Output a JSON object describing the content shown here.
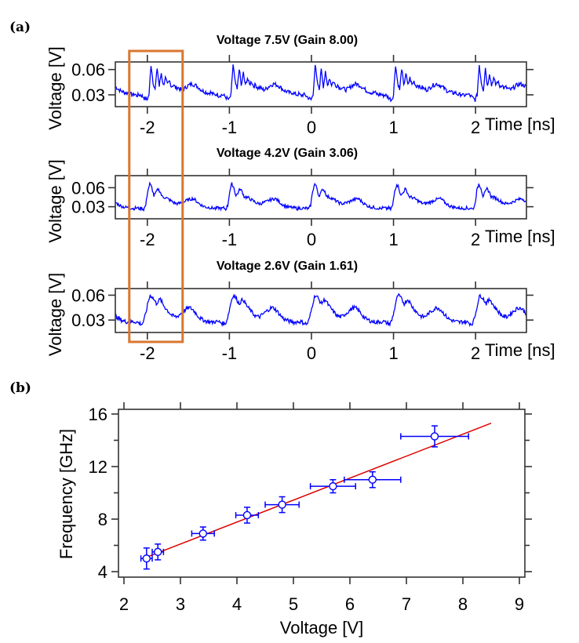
{
  "panel_labels": {
    "a": "(a)",
    "b": "(b)"
  },
  "colors": {
    "trace": "#0000ff",
    "highlight_box": "#d9772f",
    "fit_line": "#e00000",
    "points": "#0000ff",
    "axes": "#333333"
  },
  "chart_data": [
    {
      "type": "line",
      "title": "Voltage 7.5V (Gain 8.00)",
      "xlabel": "Time [ns]",
      "ylabel": "Voltage [V]",
      "xlim": [
        -2.39,
        2.62
      ],
      "ylim": [
        0.016,
        0.069
      ],
      "xticks": [
        "-2",
        "-1",
        "0",
        "1",
        "2"
      ],
      "yticks": [
        "0.06",
        "0.03"
      ],
      "pulse_times": [
        -1.98,
        -0.98,
        0.02,
        1.0,
        2.02
      ],
      "sample_offsets_ns": {
        "start": -0.1,
        "step": 0.025
      },
      "period_samples": [
        0.03,
        0.028,
        0.026,
        0.024,
        0.03,
        0.066,
        0.045,
        0.036,
        0.062,
        0.04,
        0.056,
        0.041,
        0.05,
        0.042,
        0.046,
        0.04,
        0.042,
        0.038,
        0.039,
        0.037,
        0.036,
        0.037,
        0.039,
        0.041,
        0.042,
        0.043,
        0.042,
        0.041,
        0.039,
        0.037,
        0.035,
        0.034,
        0.033,
        0.032,
        0.033,
        0.031,
        0.03,
        0.031,
        0.029,
        0.03
      ]
    },
    {
      "type": "line",
      "title": "Voltage 4.2V (Gain 3.06)",
      "xlabel": "Time [ns]",
      "ylabel": "Voltage [V]",
      "xlim": [
        -2.39,
        2.62
      ],
      "ylim": [
        0.011,
        0.079
      ],
      "xticks": [
        "-2",
        "-1",
        "0",
        "1",
        "2"
      ],
      "yticks": [
        "0.06",
        "0.03"
      ],
      "pulse_times": [
        -2.02,
        -1.02,
        -0.01,
        0.99,
        1.99
      ],
      "sample_offsets_ns": {
        "start": -0.1,
        "step": 0.025
      },
      "period_samples": [
        0.028,
        0.027,
        0.028,
        0.026,
        0.032,
        0.055,
        0.066,
        0.06,
        0.047,
        0.052,
        0.058,
        0.054,
        0.046,
        0.045,
        0.044,
        0.042,
        0.04,
        0.038,
        0.036,
        0.035,
        0.035,
        0.036,
        0.037,
        0.038,
        0.04,
        0.041,
        0.042,
        0.043,
        0.041,
        0.038,
        0.035,
        0.033,
        0.031,
        0.03,
        0.029,
        0.029,
        0.028,
        0.028,
        0.027,
        0.028
      ]
    },
    {
      "type": "line",
      "title": "Voltage 2.6V (Gain 1.61)",
      "xlabel": "Time [ns]",
      "ylabel": "Voltage [V]",
      "xlim": [
        -2.39,
        2.62
      ],
      "ylim": [
        0.015,
        0.068
      ],
      "xticks": [
        "-2",
        "-1",
        "0",
        "1",
        "2"
      ],
      "yticks": [
        "0.06",
        "0.03"
      ],
      "pulse_times": [
        -2.04,
        -1.03,
        -0.03,
        0.98,
        1.98
      ],
      "sample_offsets_ns": {
        "start": -0.1,
        "step": 0.025
      },
      "period_samples": [
        0.028,
        0.027,
        0.026,
        0.025,
        0.03,
        0.04,
        0.052,
        0.06,
        0.058,
        0.054,
        0.05,
        0.053,
        0.055,
        0.05,
        0.046,
        0.043,
        0.04,
        0.037,
        0.035,
        0.034,
        0.034,
        0.036,
        0.038,
        0.04,
        0.042,
        0.044,
        0.045,
        0.044,
        0.042,
        0.039,
        0.036,
        0.033,
        0.031,
        0.03,
        0.029,
        0.028,
        0.028,
        0.027,
        0.028,
        0.028
      ]
    },
    {
      "type": "scatter",
      "xlabel": "Voltage [V]",
      "ylabel": "Frequency [GHz]",
      "xlim": [
        1.9,
        9.1
      ],
      "ylim": [
        3.9,
        16.1
      ],
      "xticks": [
        "2",
        "3",
        "4",
        "5",
        "6",
        "7",
        "8",
        "9"
      ],
      "yticks": [
        "4",
        "8",
        "12",
        "16"
      ],
      "points": [
        {
          "x": 2.4,
          "y": 5.0,
          "xerr": 0.1,
          "yerr": 0.8
        },
        {
          "x": 2.6,
          "y": 5.5,
          "xerr": 0.1,
          "yerr": 0.6
        },
        {
          "x": 3.4,
          "y": 6.9,
          "xerr": 0.2,
          "yerr": 0.5
        },
        {
          "x": 4.18,
          "y": 8.3,
          "xerr": 0.2,
          "yerr": 0.6
        },
        {
          "x": 4.8,
          "y": 9.1,
          "xerr": 0.3,
          "yerr": 0.6
        },
        {
          "x": 5.7,
          "y": 10.5,
          "xerr": 0.4,
          "yerr": 0.5
        },
        {
          "x": 6.4,
          "y": 11.0,
          "xerr": 0.5,
          "yerr": 0.6
        },
        {
          "x": 7.5,
          "y": 14.3,
          "xerr": 0.6,
          "yerr": 0.8
        }
      ],
      "fit_line": {
        "x": [
          2.4,
          8.5
        ],
        "y": [
          5.1,
          15.3
        ]
      }
    }
  ],
  "highlight_box": {
    "time_range_ns": [
      -2.22,
      -1.57
    ]
  }
}
